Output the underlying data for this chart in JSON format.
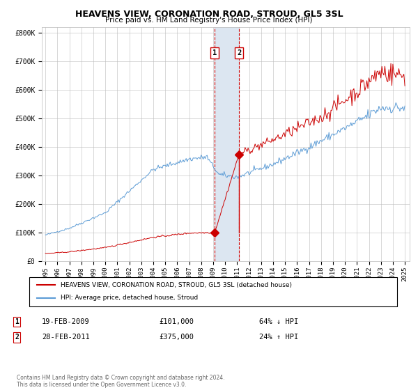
{
  "title": "HEAVENS VIEW, CORONATION ROAD, STROUD, GL5 3SL",
  "subtitle": "Price paid vs. HM Land Registry's House Price Index (HPI)",
  "legend_line1": "HEAVENS VIEW, CORONATION ROAD, STROUD, GL5 3SL (detached house)",
  "legend_line2": "HPI: Average price, detached house, Stroud",
  "footer": "Contains HM Land Registry data © Crown copyright and database right 2024.\nThis data is licensed under the Open Government Licence v3.0.",
  "t1_label": "1",
  "t1_date": "19-FEB-2009",
  "t1_price": "£101,000",
  "t1_hpi": "64% ↓ HPI",
  "t1_year": 2009.13,
  "t1_price_val": 101000,
  "t2_label": "2",
  "t2_date": "28-FEB-2011",
  "t2_price": "£375,000",
  "t2_hpi": "24% ↑ HPI",
  "t2_year": 2011.16,
  "t2_price_val": 375000,
  "ylim": [
    0,
    820000
  ],
  "xlim_start": 1994.7,
  "xlim_end": 2025.4,
  "red_color": "#cc0000",
  "blue_color": "#5b9bd5",
  "shading_color": "#dce6f1",
  "grid_color": "#bbbbbb",
  "background_color": "#ffffff",
  "yticks": [
    0,
    100000,
    200000,
    300000,
    400000,
    500000,
    600000,
    700000,
    800000
  ],
  "ylabels": [
    "£0",
    "£100K",
    "£200K",
    "£300K",
    "£400K",
    "£500K",
    "£600K",
    "£700K",
    "£800K"
  ]
}
